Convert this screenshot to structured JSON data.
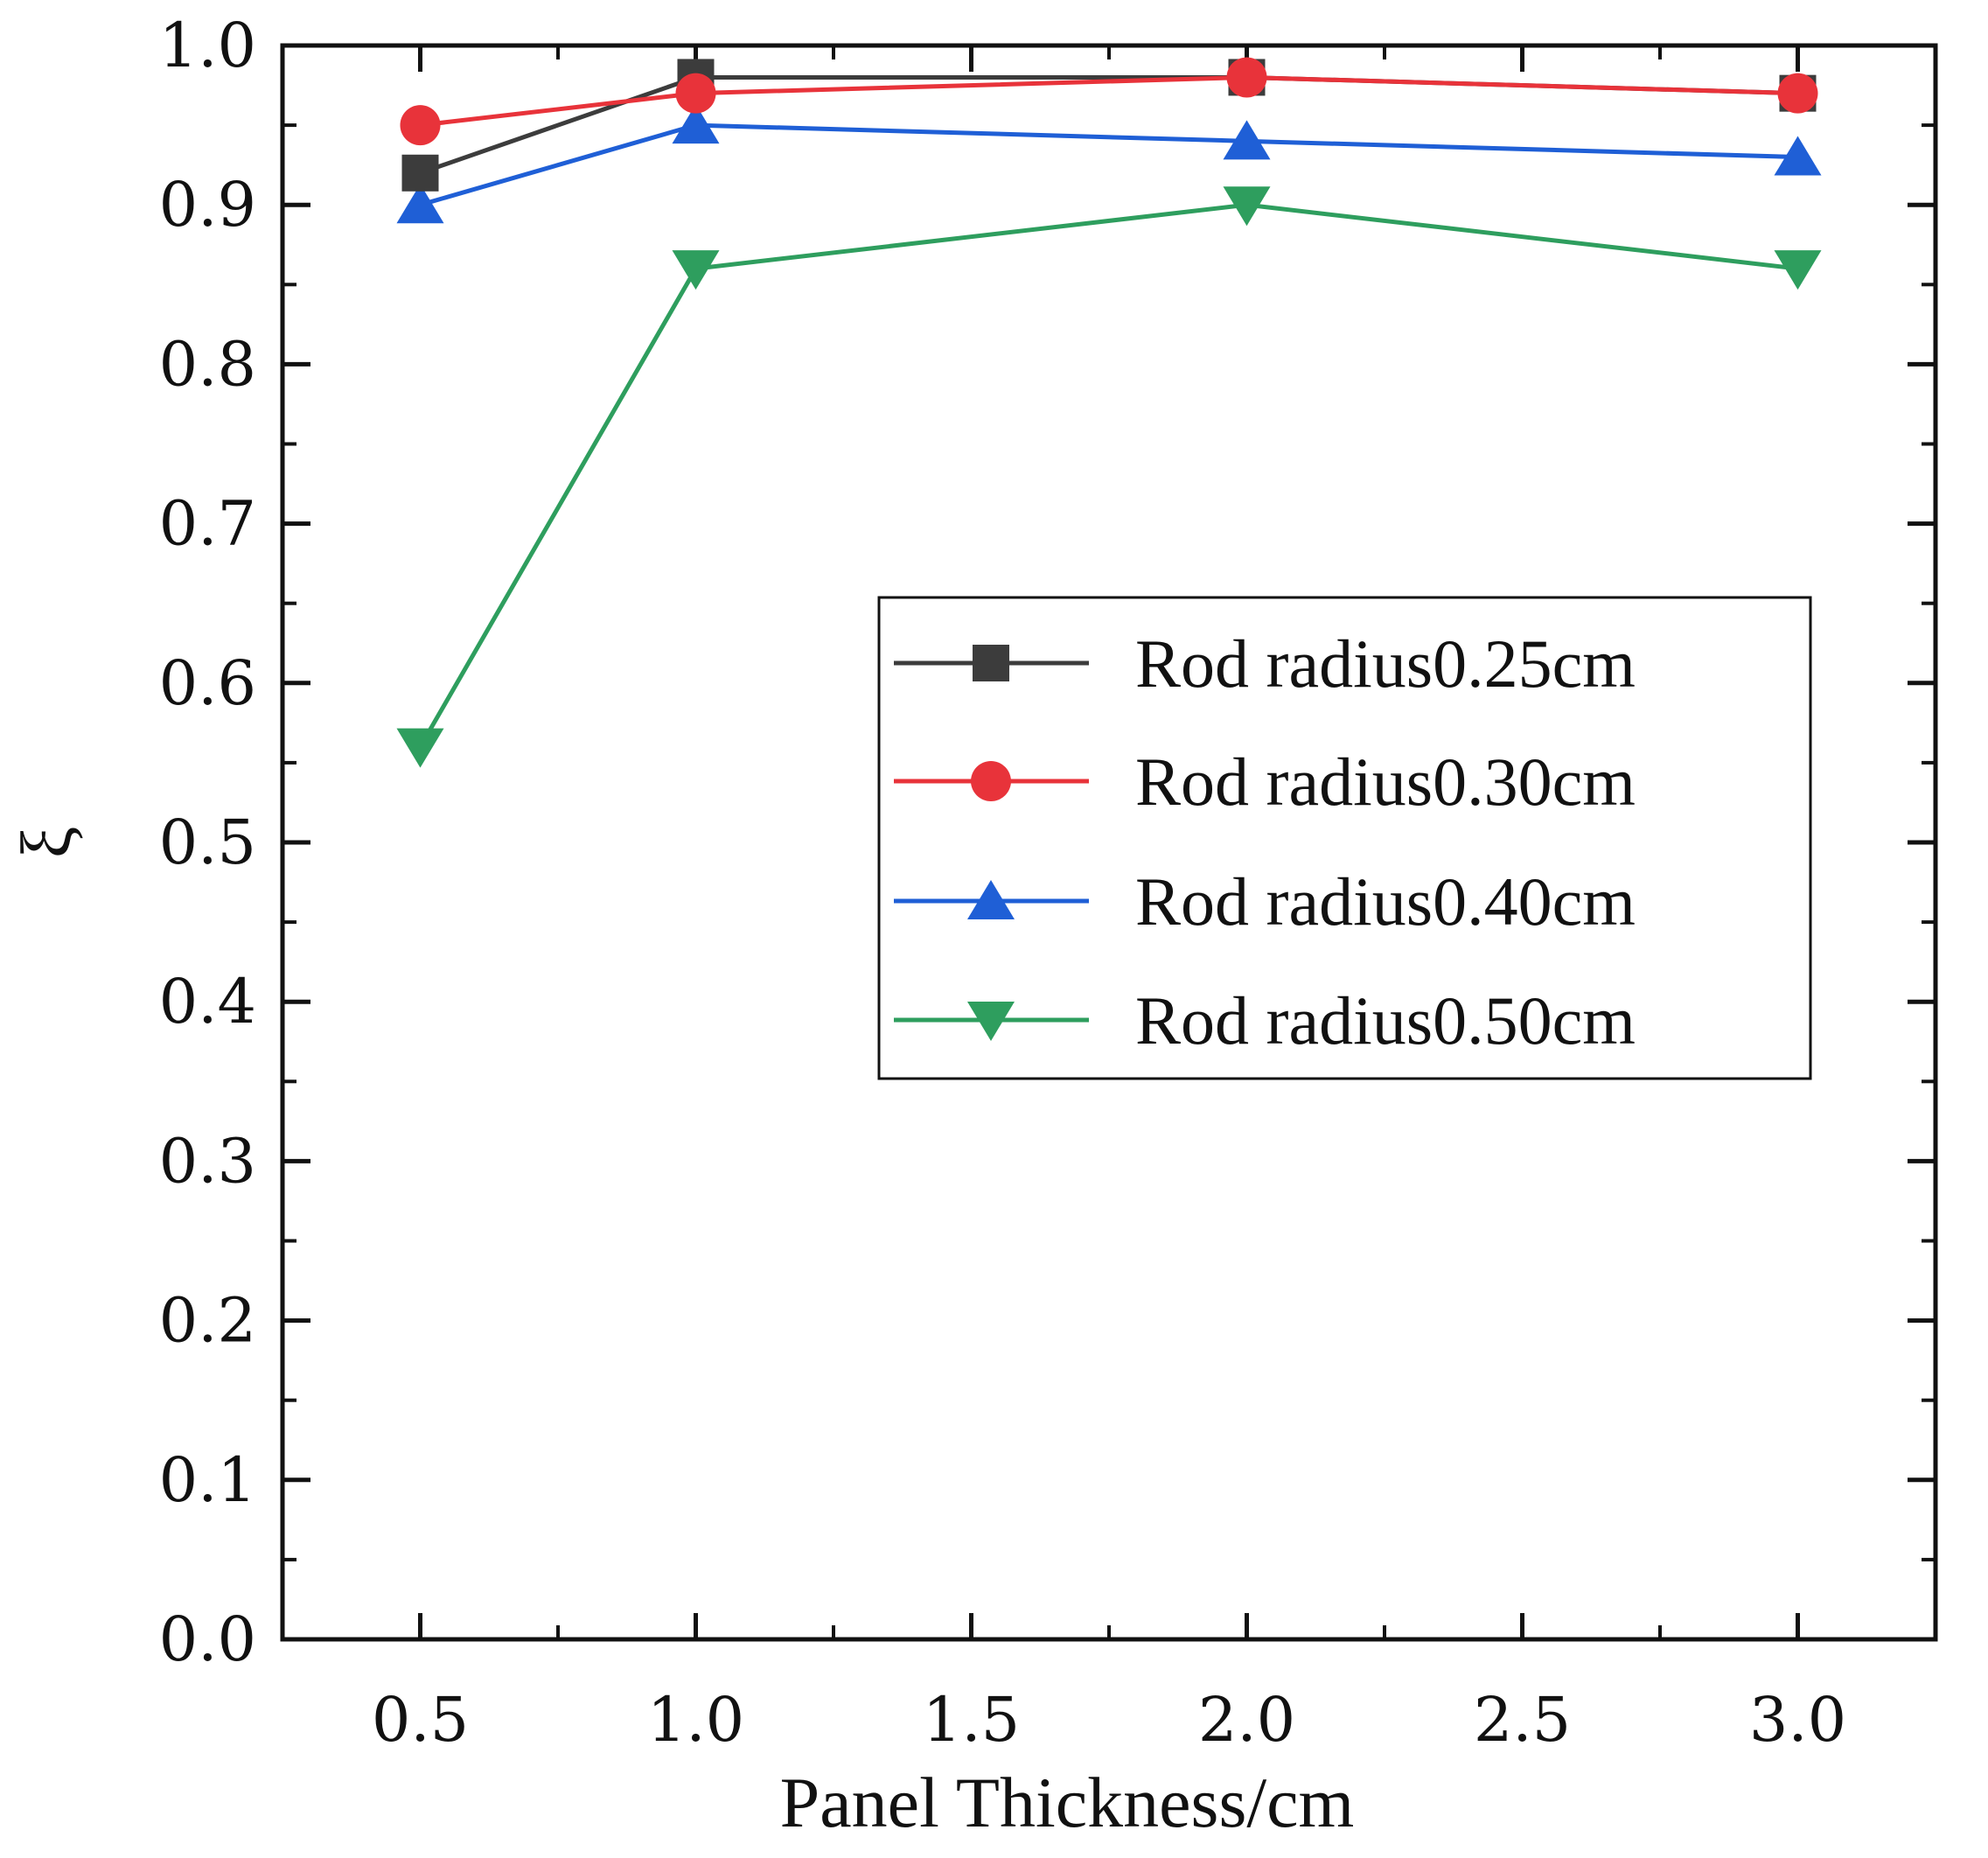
{
  "chart_data": {
    "type": "line",
    "title": "",
    "xlabel": "Panel Thickness/cm",
    "ylabel": "ξ",
    "x_ticks": [
      "0.5",
      "1.0",
      "1.5",
      "2.0",
      "2.5",
      "3.0"
    ],
    "y_ticks": [
      "0.0",
      "0.1",
      "0.2",
      "0.3",
      "0.4",
      "0.5",
      "0.6",
      "0.7",
      "0.8",
      "0.9",
      "1.0"
    ],
    "ylim": [
      0,
      1.0
    ],
    "grid": false,
    "legend_position": "middle-right",
    "series": [
      {
        "name": "Rod radius0.25cm",
        "color": "#3c3c3c",
        "marker": "square",
        "values": [
          0.92,
          0.98,
          0.98,
          0.97
        ]
      },
      {
        "name": "Rod radius0.30cm",
        "color": "#e8333a",
        "marker": "circle",
        "values": [
          0.95,
          0.97,
          0.98,
          0.97
        ]
      },
      {
        "name": "Rod radius0.40cm",
        "color": "#1f5fd6",
        "marker": "triangle-up",
        "values": [
          0.9,
          0.95,
          0.94,
          0.93
        ]
      },
      {
        "name": "Rod radius0.50cm",
        "color": "#2e9e5e",
        "marker": "triangle-down",
        "values": [
          0.56,
          0.86,
          0.9,
          0.86
        ]
      }
    ]
  }
}
